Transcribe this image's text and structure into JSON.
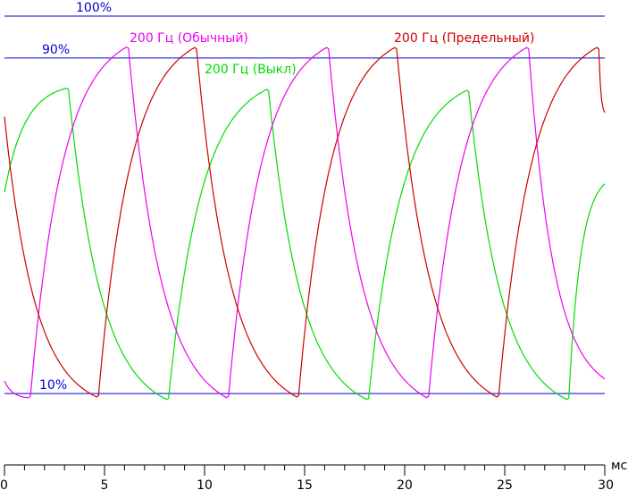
{
  "chart_data": {
    "type": "line",
    "x_unit_label": "мс",
    "x_ticks": [
      0,
      5,
      10,
      15,
      20,
      25,
      30
    ],
    "xlim": [
      0,
      30
    ],
    "ylim": [
      0,
      100
    ],
    "grid": false,
    "reference_lines": [
      {
        "label": "100%",
        "y": 100,
        "color": "#0000cc"
      },
      {
        "label": "90%",
        "y": 90,
        "color": "#0000cc"
      },
      {
        "label": "10%",
        "y": 10,
        "color": "#0000cc"
      }
    ],
    "series": [
      {
        "name": "200 Гц (Выкл)",
        "color": "#00dd00",
        "points": [
          [
            0,
            58.0
          ],
          [
            3.1,
            82.8
          ],
          [
            3.2,
            82.5
          ],
          [
            8.1,
            8.6
          ],
          [
            8.2,
            8.8
          ],
          [
            13.1,
            82.5
          ],
          [
            13.2,
            82.2
          ],
          [
            18.1,
            8.6
          ],
          [
            18.2,
            8.8
          ],
          [
            23.1,
            82.3
          ],
          [
            23.2,
            82.0
          ],
          [
            28.1,
            8.6
          ],
          [
            28.2,
            8.9
          ],
          [
            30,
            60.0
          ]
        ]
      },
      {
        "name": "200 Гц (Обычный)",
        "color": "#ee00ee",
        "points": [
          [
            0,
            13.0
          ],
          [
            1.2,
            9.0
          ],
          [
            1.3,
            9.4
          ],
          [
            6.1,
            92.6
          ],
          [
            6.2,
            92.3
          ],
          [
            11.1,
            9.0
          ],
          [
            11.2,
            9.4
          ],
          [
            16.1,
            92.5
          ],
          [
            16.2,
            92.2
          ],
          [
            21.1,
            9.0
          ],
          [
            21.2,
            9.4
          ],
          [
            26.1,
            92.5
          ],
          [
            26.2,
            92.2
          ],
          [
            30,
            13.5
          ]
        ]
      },
      {
        "name": "200 Гц (Предельный)",
        "color": "#cc0000",
        "points": [
          [
            0,
            76.0
          ],
          [
            4.6,
            9.2
          ],
          [
            4.7,
            9.5
          ],
          [
            9.5,
            92.5
          ],
          [
            9.6,
            92.2
          ],
          [
            14.6,
            9.2
          ],
          [
            14.7,
            9.5
          ],
          [
            19.5,
            92.5
          ],
          [
            19.6,
            92.2
          ],
          [
            24.6,
            9.2
          ],
          [
            24.7,
            9.5
          ],
          [
            29.6,
            92.5
          ],
          [
            29.7,
            92.2
          ],
          [
            30,
            77.0
          ]
        ]
      }
    ]
  }
}
